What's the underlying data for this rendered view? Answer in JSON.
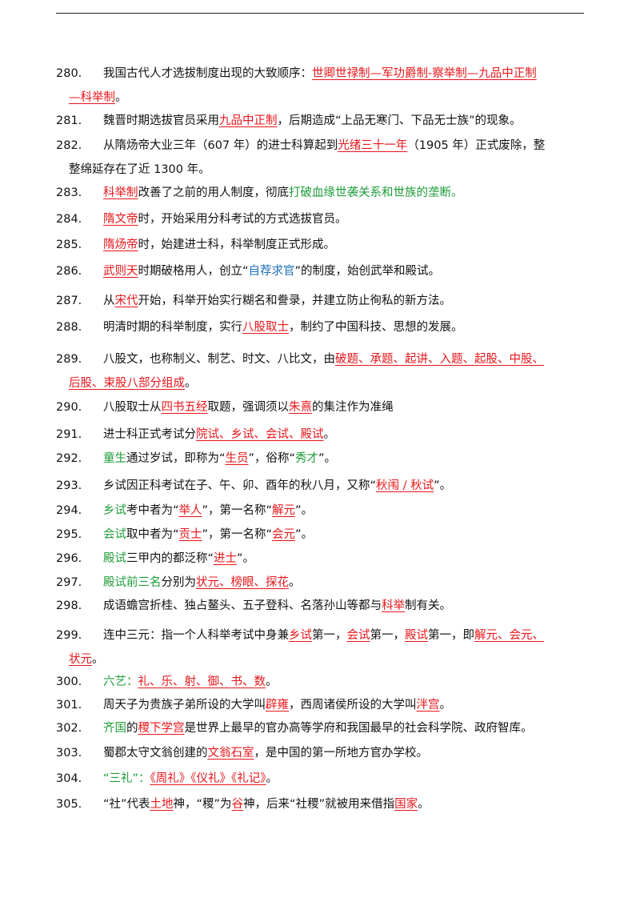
{
  "items": [
    {
      "num": "280.",
      "segments": [
        {
          "t": "我国古代人才选拔制度出现的大致顺序：",
          "s": "n"
        },
        {
          "t": "世卿世禄制—军功爵制-察举制—九品中正制",
          "s": "r"
        }
      ],
      "cont": [
        {
          "t": "—科举制",
          "s": "r"
        },
        {
          "t": "。",
          "s": "n"
        }
      ]
    },
    {
      "num": "281.",
      "segments": [
        {
          "t": "魏晋时期选拔官员采用",
          "s": "n"
        },
        {
          "t": "九品中正制",
          "s": "r"
        },
        {
          "t": "，后期造成“上品无寒门、下品无士族”的现象。",
          "s": "n"
        }
      ]
    },
    {
      "num": "282.",
      "segments": [
        {
          "t": "从隋炀帝大业三年（607 年）的进士科算起到",
          "s": "n"
        },
        {
          "t": "光绪三十一年",
          "s": "r"
        },
        {
          "t": "（1905 年）正式废除，整",
          "s": "n"
        }
      ],
      "cont": [
        {
          "t": "整绵延存在了近 1300 年。",
          "s": "n"
        }
      ]
    },
    {
      "num": "283.",
      "segments": [
        {
          "t": "科举制",
          "s": "r"
        },
        {
          "t": "改善了之前的用人制度，彻底",
          "s": "n"
        },
        {
          "t": "打破血缘世袭关系和世族的垄断。",
          "s": "g"
        }
      ]
    },
    {
      "num": "284.",
      "segments": [
        {
          "t": "隋文帝",
          "s": "r"
        },
        {
          "t": "时，开始采用分科考试的方式选拔官员。",
          "s": "n"
        }
      ]
    },
    {
      "num": "285.",
      "segments": [
        {
          "t": "隋炀帝",
          "s": "r"
        },
        {
          "t": "时，始建进士科，科举制度正式形成。",
          "s": "n"
        }
      ]
    },
    {
      "num": "286.",
      "segments": [
        {
          "t": "武则天",
          "s": "r"
        },
        {
          "t": "时期破格用人，创立“",
          "s": "n"
        },
        {
          "t": "自荐求官",
          "s": "b"
        },
        {
          "t": "”的制度，始创武举和殿试。",
          "s": "n"
        }
      ]
    },
    {
      "num": "287.",
      "segments": [
        {
          "t": "从",
          "s": "n"
        },
        {
          "t": "宋代",
          "s": "r"
        },
        {
          "t": "开始，科举开始实行糊名和誊录，并建立防止徇私的新方法。",
          "s": "n"
        }
      ]
    },
    {
      "num": "288.",
      "segments": [
        {
          "t": "明清时期的科举制度，实行",
          "s": "n"
        },
        {
          "t": "八股取士",
          "s": "r"
        },
        {
          "t": "，制约了中国科技、思想的发展。",
          "s": "n"
        }
      ]
    },
    {
      "num": "289.",
      "segments": [
        {
          "t": "八股文，也称制义、制艺、时文、八比文，由",
          "s": "n"
        },
        {
          "t": "破题、承题、起讲、入题、起股、中股、",
          "s": "r"
        }
      ],
      "cont": [
        {
          "t": "后股、束股八部分组成",
          "s": "r"
        },
        {
          "t": "。",
          "s": "n"
        }
      ]
    },
    {
      "num": "290.",
      "segments": [
        {
          "t": "八股取士从",
          "s": "n"
        },
        {
          "t": "四书五经",
          "s": "r"
        },
        {
          "t": "取题，强调须以",
          "s": "n"
        },
        {
          "t": "朱熹",
          "s": "r"
        },
        {
          "t": "的集注作为准绳",
          "s": "n"
        }
      ]
    },
    {
      "num": "291.",
      "segments": [
        {
          "t": "进士科正式考试分",
          "s": "n"
        },
        {
          "t": "院试、乡试、会试、殿试",
          "s": "r"
        },
        {
          "t": "。",
          "s": "n"
        }
      ]
    },
    {
      "num": "292.",
      "segments": [
        {
          "t": "童生",
          "s": "g"
        },
        {
          "t": "通过岁试，即称为“",
          "s": "n"
        },
        {
          "t": "生员",
          "s": "r"
        },
        {
          "t": "”，俗称“",
          "s": "n"
        },
        {
          "t": "秀才",
          "s": "g"
        },
        {
          "t": "”。",
          "s": "n"
        }
      ]
    },
    {
      "num": "293.",
      "segments": [
        {
          "t": "乡试因正科考试在子、午、卯、酉年的秋八月，又称“",
          "s": "n"
        },
        {
          "t": "秋闱 / 秋试",
          "s": "r"
        },
        {
          "t": "”。",
          "s": "n"
        }
      ]
    },
    {
      "num": "294.",
      "segments": [
        {
          "t": "乡试",
          "s": "g"
        },
        {
          "t": "考中者为“",
          "s": "n"
        },
        {
          "t": "举人",
          "s": "r"
        },
        {
          "t": "”，第一名称“",
          "s": "n"
        },
        {
          "t": "解元",
          "s": "r"
        },
        {
          "t": "”。",
          "s": "n"
        }
      ]
    },
    {
      "num": "295.",
      "segments": [
        {
          "t": "会试",
          "s": "g"
        },
        {
          "t": "取中者为“",
          "s": "n"
        },
        {
          "t": "贡士",
          "s": "r"
        },
        {
          "t": "”，第一名称“",
          "s": "n"
        },
        {
          "t": "会元",
          "s": "r"
        },
        {
          "t": "”。",
          "s": "n"
        }
      ]
    },
    {
      "num": "296.",
      "segments": [
        {
          "t": "殿试",
          "s": "g"
        },
        {
          "t": "三甲内的都泛称“",
          "s": "n"
        },
        {
          "t": "进士",
          "s": "r"
        },
        {
          "t": "”。",
          "s": "n"
        }
      ]
    },
    {
      "num": "297.",
      "segments": [
        {
          "t": "殿试前三名",
          "s": "g"
        },
        {
          "t": "分别为",
          "s": "n"
        },
        {
          "t": "状元、榜眼、探花",
          "s": "r"
        },
        {
          "t": "。",
          "s": "n"
        }
      ]
    },
    {
      "num": "298.",
      "segments": [
        {
          "t": "成语蟾宫折桂、独占鳌头、五子登科、名落孙山等都与",
          "s": "n"
        },
        {
          "t": "科举",
          "s": "r"
        },
        {
          "t": "制有关。",
          "s": "n"
        }
      ]
    },
    {
      "num": "299.",
      "segments": [
        {
          "t": "连中三元：指一个人科举考试中身兼",
          "s": "n"
        },
        {
          "t": "乡试",
          "s": "r"
        },
        {
          "t": "第一，",
          "s": "n"
        },
        {
          "t": "会试",
          "s": "r"
        },
        {
          "t": "第一，",
          "s": "n"
        },
        {
          "t": "殿试",
          "s": "r"
        },
        {
          "t": "第一，即",
          "s": "n"
        },
        {
          "t": "解元、会元、",
          "s": "r"
        }
      ],
      "cont": [
        {
          "t": "状元",
          "s": "r"
        },
        {
          "t": "。",
          "s": "n"
        }
      ]
    },
    {
      "num": "300.",
      "segments": [
        {
          "t": "六艺：",
          "s": "g"
        },
        {
          "t": "礼、乐、射、御、书、数",
          "s": "r"
        },
        {
          "t": "。",
          "s": "n"
        }
      ]
    },
    {
      "num": "301.",
      "segments": [
        {
          "t": "周天子为贵族子弟所设的大学叫",
          "s": "n"
        },
        {
          "t": "辟雍",
          "s": "r"
        },
        {
          "t": "，西周诸侯所设的大学叫",
          "s": "n"
        },
        {
          "t": "泮宫",
          "s": "r"
        },
        {
          "t": "。",
          "s": "n"
        }
      ]
    },
    {
      "num": "302.",
      "segments": [
        {
          "t": "齐国",
          "s": "g"
        },
        {
          "t": "的",
          "s": "n"
        },
        {
          "t": "稷下学宫",
          "s": "r"
        },
        {
          "t": "是世界上最早的官办高等学府和我国最早的社会科学院、政府智库。",
          "s": "n"
        }
      ]
    },
    {
      "num": "303.",
      "segments": [
        {
          "t": "蜀郡太守文翁创建的",
          "s": "n"
        },
        {
          "t": "文翁石室",
          "s": "r"
        },
        {
          "t": "，是中国的第一所地方官办学校。",
          "s": "n"
        }
      ]
    },
    {
      "num": "304.",
      "segments": [
        {
          "t": "“三礼”：",
          "s": "g"
        },
        {
          "t": "《周礼》《仪礼》《礼记》",
          "s": "r"
        },
        {
          "t": "。",
          "s": "n"
        }
      ]
    },
    {
      "num": "305.",
      "segments": [
        {
          "t": "“社”代表",
          "s": "n"
        },
        {
          "t": "土地",
          "s": "r"
        },
        {
          "t": "神，“稷”为",
          "s": "n"
        },
        {
          "t": "谷",
          "s": "r"
        },
        {
          "t": "神，后来“社稷”就被用来借指",
          "s": "n"
        },
        {
          "t": "国家",
          "s": "r"
        },
        {
          "t": "。",
          "s": "n"
        }
      ]
    }
  ]
}
